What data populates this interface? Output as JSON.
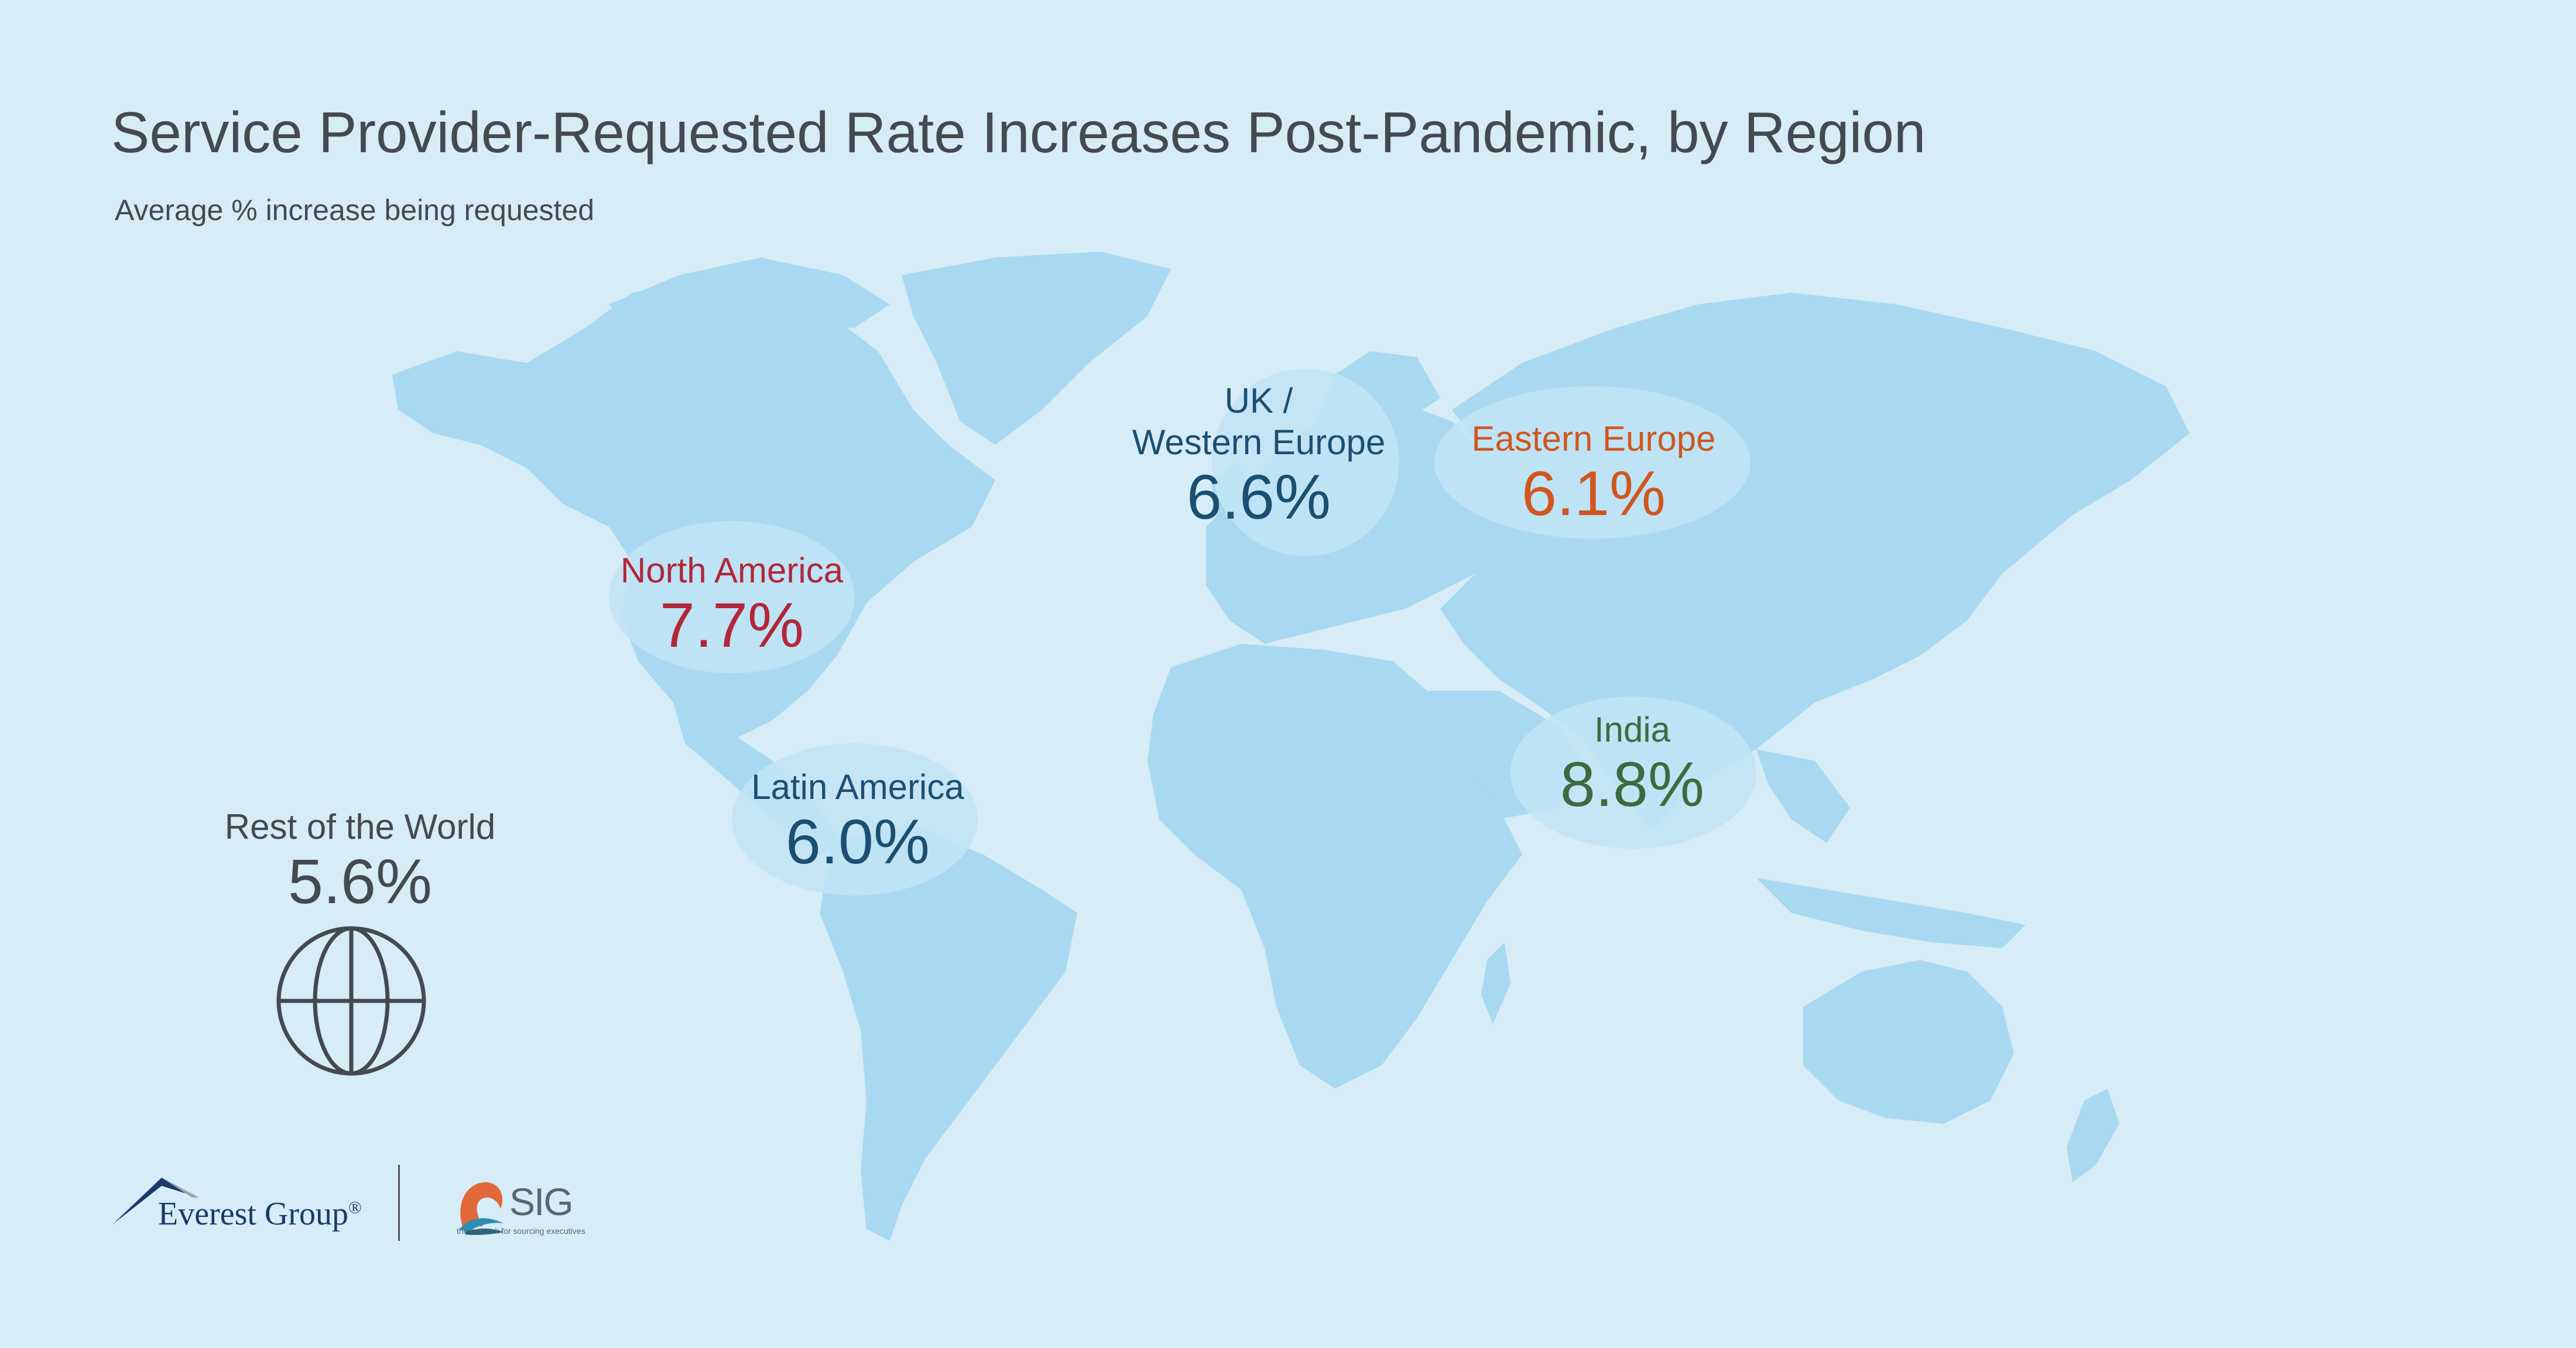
{
  "title": "Service Provider-Requested Rate Increases Post-Pandemic, by Region",
  "subtitle": "Average % increase being requested",
  "colors": {
    "background": "#d6ecf7",
    "land": "#a9d9f0",
    "north_america": "#b2263a",
    "latin_america": "#1b4f72",
    "uk_western_europe": "#1b4f72",
    "eastern_europe": "#d0561f",
    "india": "#3d6b3f",
    "rest_of_world": "#444a4f"
  },
  "chart_data": {
    "type": "map",
    "title": "Service Provider-Requested Rate Increases Post-Pandemic, by Region",
    "subtitle": "Average % increase being requested",
    "regions": [
      {
        "key": "north_america",
        "name": "North America",
        "value": 7.7,
        "label": "7.7%"
      },
      {
        "key": "latin_america",
        "name": "Latin America",
        "value": 6.0,
        "label": "6.0%"
      },
      {
        "key": "uk_western_europe",
        "name_line1": "UK /",
        "name_line2": "Western Europe",
        "value": 6.6,
        "label": "6.6%"
      },
      {
        "key": "eastern_europe",
        "name": "Eastern Europe",
        "value": 6.1,
        "label": "6.1%"
      },
      {
        "key": "india",
        "name": "India",
        "value": 8.8,
        "label": "8.8%"
      },
      {
        "key": "rest_of_world",
        "name": "Rest of the World",
        "value": 5.6,
        "label": "5.6%"
      }
    ]
  },
  "icons": {
    "globe": "globe-icon",
    "everest_logo": "mountain-peak-icon",
    "sig_logo": "sig-swirl-icon"
  },
  "logos": {
    "everest_text": "Everest Group",
    "everest_reg": "®",
    "sig_text": "SIG",
    "sig_tagline": "the network for sourcing executives"
  }
}
